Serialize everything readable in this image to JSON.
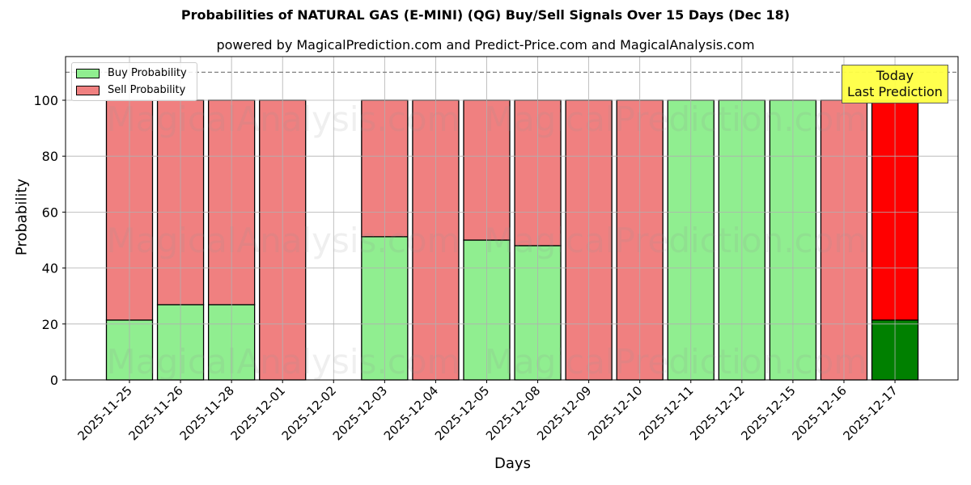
{
  "chart_data": {
    "type": "bar",
    "stacked": true,
    "title": "Probabilities of NATURAL GAS (E-MINI) (QG) Buy/Sell Signals Over 15 Days (Dec 18)",
    "subtitle": "powered by MagicalPrediction.com and Predict-Price.com and MagicalAnalysis.com",
    "xlabel": "Days",
    "ylabel": "Probability",
    "ylim": [
      0,
      115
    ],
    "yticks": [
      0,
      20,
      40,
      60,
      80,
      100
    ],
    "grid": true,
    "reference_line": {
      "y": 110,
      "style": "dashed",
      "color": "#808080"
    },
    "categories": [
      "2025-11-25",
      "2025-11-26",
      "2025-11-28",
      "2025-12-01",
      "2025-12-02",
      "2025-12-03",
      "2025-12-04",
      "2025-12-05",
      "2025-12-08",
      "2025-12-09",
      "2025-12-10",
      "2025-12-11",
      "2025-12-12",
      "2025-12-15",
      "2025-12-16",
      "2025-12-17"
    ],
    "series": [
      {
        "name": "Buy Probability",
        "color": "#90ee90",
        "values": [
          21.4,
          26.9,
          26.9,
          0,
          null,
          51.2,
          0,
          50.0,
          48.0,
          0,
          0,
          100,
          100,
          100,
          0,
          21.4
        ]
      },
      {
        "name": "Sell Probability",
        "color": "#f08080",
        "values": [
          78.6,
          73.1,
          73.1,
          100,
          null,
          48.8,
          100,
          50.0,
          52.0,
          100,
          100,
          0,
          0,
          0,
          100,
          78.6
        ]
      }
    ],
    "highlight": {
      "category": "2025-12-17",
      "buy_color": "#008000",
      "sell_color": "#ff0000"
    },
    "legend": {
      "position": "upper left",
      "entries": [
        "Buy Probability",
        "Sell Probability"
      ]
    },
    "annotation": {
      "text": "Today\nLast Prediction",
      "line1": "Today",
      "line2": "Last Prediction",
      "background": "#ffff44"
    },
    "watermarks": [
      "MagicalAnalysis.com",
      "MagicalPrediction.com"
    ]
  }
}
